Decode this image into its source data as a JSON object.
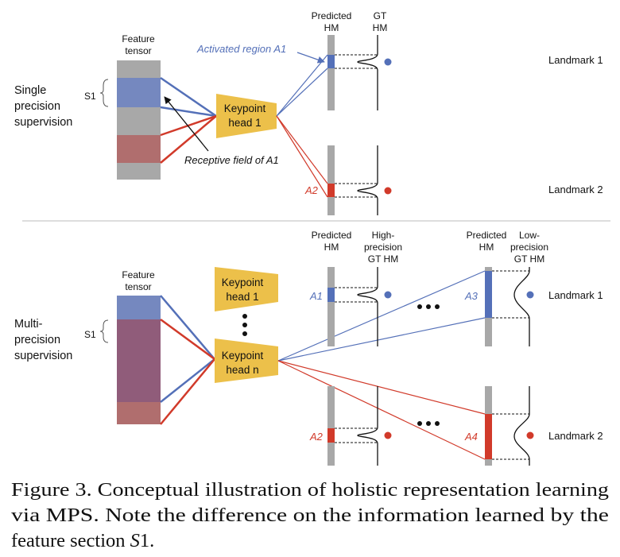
{
  "top": {
    "side_label": [
      "Single",
      "precision",
      "supervision"
    ],
    "feature_title": [
      "Feature",
      "tensor"
    ],
    "s1": "S1",
    "keypoint_head": [
      "Keypoint",
      "head 1"
    ],
    "activated_label": "Activated region A1",
    "receptive_label": "Receptive field of A1",
    "pred_hm": [
      "Predicted",
      "HM"
    ],
    "gt_hm": [
      "GT",
      "HM"
    ],
    "a2": "A2",
    "landmark1": "Landmark 1",
    "landmark2": "Landmark 2"
  },
  "bottom": {
    "side_label": [
      "Multi-",
      "precision",
      "supervision"
    ],
    "feature_title": [
      "Feature",
      "tensor"
    ],
    "s1": "S1",
    "head1": [
      "Keypoint",
      "head 1"
    ],
    "headn": [
      "Keypoint",
      "head n"
    ],
    "pred_hm": [
      "Predicted",
      "HM"
    ],
    "high_gt": [
      "High-",
      "precision",
      "GT HM"
    ],
    "pred_hm2": [
      "Predicted",
      "HM"
    ],
    "low_gt": [
      "Low-",
      "precision",
      "GT HM"
    ],
    "a1": "A1",
    "a2": "A2",
    "a3": "A3",
    "a4": "A4",
    "landmark1": "Landmark 1",
    "landmark2": "Landmark 2"
  },
  "caption": {
    "line1": "Figure 3. Conceptual illustration of holistic representation learning",
    "line2": "via MPS. Note the difference on the information learned by the",
    "line3a": "feature section ",
    "line3b": "S",
    "line3c": "1."
  },
  "colors": {
    "blue": "#5470b8",
    "red": "#d13a2a",
    "gold": "#ecc04a",
    "gray": "#a8a8a8",
    "blue_block": "#7588bf",
    "red_block": "#b06e6e",
    "mix_block": "#905c7a"
  }
}
